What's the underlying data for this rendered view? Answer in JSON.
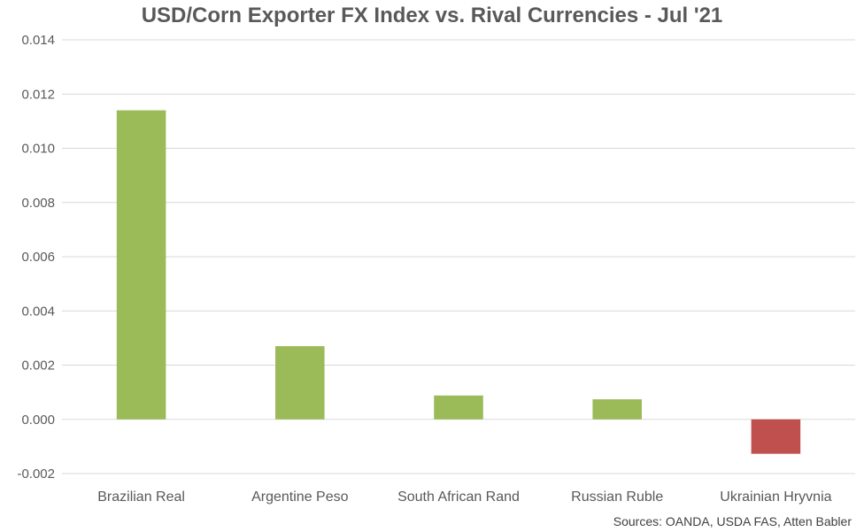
{
  "chart_data": {
    "type": "bar",
    "title": "USD/Corn Exporter FX Index vs. Rival Currencies - Jul '21",
    "xlabel": "",
    "ylabel": "",
    "categories": [
      "Brazilian Real",
      "Argentine Peso",
      "South African Rand",
      "Russian Ruble",
      "Ukrainian Hryvnia"
    ],
    "values": [
      0.0114,
      0.0027,
      0.00088,
      0.00074,
      -0.00127
    ],
    "ylim": [
      -0.002,
      0.014
    ],
    "yticks": [
      "-0.002",
      "0.000",
      "0.002",
      "0.004",
      "0.006",
      "0.008",
      "0.010",
      "0.012",
      "0.014"
    ],
    "grid": true,
    "legend": "none",
    "colors": {
      "positive": "#9BBB59",
      "negative": "#C0504D",
      "grid": "#d9d9d9",
      "text": "#595959"
    },
    "source_note": "Sources: OANDA, USDA FAS, Atten Babler"
  }
}
